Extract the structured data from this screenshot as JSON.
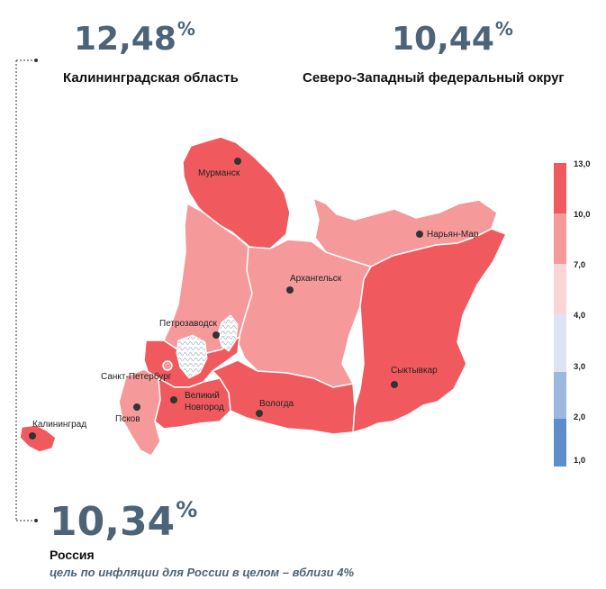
{
  "stats": {
    "kaliningrad": {
      "value": "12,48",
      "unit": "%",
      "label": "Калининградская область"
    },
    "nwfd": {
      "value": "10,44",
      "unit": "%",
      "label": "Северо-Западный федеральный округ"
    },
    "russia": {
      "value": "10,34",
      "unit": "%",
      "label": "Россия",
      "note": "цель по инфляции для России в целом – вблизи 4%"
    }
  },
  "cities": {
    "murmansk": "Мурманск",
    "naryan_mar": "Нарьян-Мар",
    "arkhangelsk": "Архангельск",
    "petrozavodsk": "Петрозаводск",
    "st_petersburg": "Санкт-Петербург",
    "syktyvkar": "Сыктывкар",
    "pskov": "Псков",
    "veliky_novgorod_1": "Великий",
    "veliky_novgorod_2": "Новгород",
    "vologda": "Вологда",
    "kaliningrad": "Калининград"
  },
  "legend": {
    "labels": [
      "13,0",
      "10,0",
      "7,0",
      "4,0",
      "3,0",
      "2,0",
      "1,0"
    ],
    "colors": [
      "#f05a5e",
      "#f5999a",
      "#fbd5d6",
      "#dde3f2",
      "#9cb8de",
      "#5e8ec9"
    ]
  },
  "colors": {
    "high": "#f05a5e",
    "mid": "#f5999a",
    "stat_text": "#4d6478"
  }
}
